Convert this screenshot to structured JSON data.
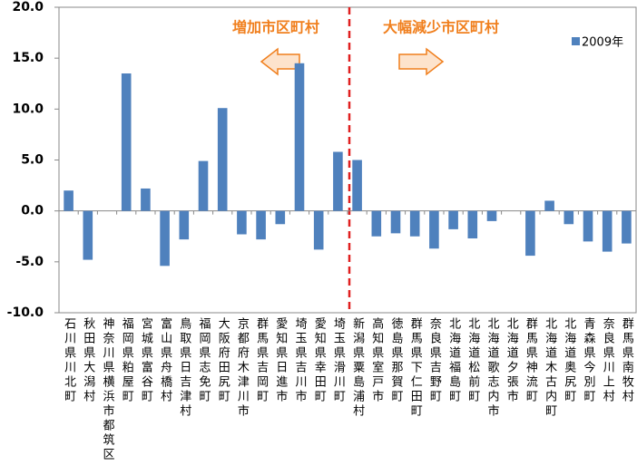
{
  "chart_data": {
    "type": "bar",
    "annotations": [
      "増加市区町村",
      "大幅減少市区町村"
    ],
    "categories": [
      "石川県川北町",
      "秋田県大潟村",
      "神奈川県横浜市都筑区",
      "福岡県粕屋町",
      "宮城県富谷町",
      "富山県舟橋村",
      "鳥取県日吉津村",
      "福岡県志免町",
      "大阪府田尻町",
      "京都府木津川市",
      "群馬県吉岡町",
      "愛知県日進市",
      "埼玉県吉川市",
      "愛知県幸田町",
      "埼玉県滑川町",
      "新潟県粟島浦村",
      "高知県室戸市",
      "徳島県那賀町",
      "群馬県下仁田町",
      "奈良県吉野町",
      "北海道福島町",
      "北海道松前町",
      "北海道歌志内市",
      "北海道夕張市",
      "群馬県神流町",
      "北海道木古内町",
      "北海道奥尻町",
      "青森県今別町",
      "奈良県川上村",
      "群馬県南牧村"
    ],
    "series": [
      {
        "name": "2009年",
        "color": "#4f81bd",
        "values": [
          2.0,
          -4.8,
          0,
          13.5,
          2.2,
          -5.4,
          -2.8,
          4.9,
          10.1,
          -2.3,
          -2.8,
          -1.3,
          14.5,
          -3.8,
          5.8,
          5.0,
          -2.5,
          -2.2,
          -2.5,
          -3.7,
          -1.8,
          -2.7,
          -1.0,
          0,
          -4.4,
          1.0,
          -1.3,
          -3.0,
          -4.0,
          -3.2
        ]
      }
    ],
    "ylim": [
      -10,
      20
    ],
    "yticks": [
      {
        "value": -10,
        "label": "-10.0"
      },
      {
        "value": -5,
        "label": "-5.0"
      },
      {
        "value": 0,
        "label": "0.0"
      },
      {
        "value": 5,
        "label": "5.0"
      },
      {
        "value": 10,
        "label": "10.0"
      },
      {
        "value": 15,
        "label": "15.0"
      },
      {
        "value": 20,
        "label": "20.0"
      }
    ],
    "legend_position": "top-right"
  }
}
